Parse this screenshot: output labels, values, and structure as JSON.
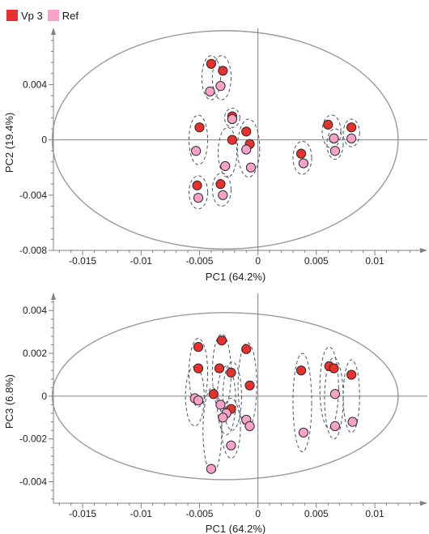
{
  "legend": [
    {
      "name": "Vp 3",
      "color": "#e8302c"
    },
    {
      "name": "Ref",
      "color": "#f7a2c6"
    }
  ],
  "chart_data": [
    {
      "type": "scatter",
      "xlabel": "PC1 (64.2%)",
      "ylabel": "PC2 (19.4%)",
      "xlim": [
        -0.0175,
        0.0145
      ],
      "ylim": [
        -0.008,
        0.0076
      ],
      "xticks": [
        -0.015,
        -0.01,
        -0.005,
        0,
        0.005,
        0.01
      ],
      "xtick_labels": [
        "-0.015",
        "-0.01",
        "-0.005",
        "0",
        "0.005",
        "0.01"
      ],
      "yticks": [
        -0.008,
        -0.004,
        0,
        0.004
      ],
      "ytick_labels": [
        "-0.008",
        "-0.004",
        "0",
        "0.004"
      ],
      "ellipse": {
        "cx": -0.0028,
        "cy": 0.0,
        "rx": 0.0148,
        "ry": 0.0079
      },
      "series": [
        {
          "name": "Vp 3",
          "color": "#e8302c",
          "points": [
            [
              -0.004,
              0.0055
            ],
            [
              -0.003,
              0.005
            ],
            [
              -0.0022,
              0.0017
            ],
            [
              -0.005,
              0.0009
            ],
            [
              -0.0022,
              0.0
            ],
            [
              -0.001,
              0.0006
            ],
            [
              -0.0007,
              -0.0003
            ],
            [
              -0.0052,
              -0.0033
            ],
            [
              -0.0032,
              -0.0032
            ],
            [
              0.0037,
              -0.001
            ],
            [
              0.006,
              0.0011
            ],
            [
              0.0065,
              0.0001
            ],
            [
              0.008,
              0.0009
            ]
          ]
        },
        {
          "name": "Ref",
          "color": "#f7a2c6",
          "points": [
            [
              -0.0041,
              0.0035
            ],
            [
              -0.0032,
              0.0039
            ],
            [
              -0.0022,
              0.0015
            ],
            [
              -0.0053,
              -0.0008
            ],
            [
              -0.0028,
              -0.0019
            ],
            [
              -0.001,
              -0.0007
            ],
            [
              -0.0006,
              -0.002
            ],
            [
              -0.0051,
              -0.0042
            ],
            [
              -0.003,
              -0.004
            ],
            [
              0.0039,
              -0.0017
            ],
            [
              0.0065,
              0.0001
            ],
            [
              0.0066,
              -0.0008
            ],
            [
              0.008,
              0.0001
            ]
          ]
        }
      ],
      "clusters": [
        {
          "cx": -0.004,
          "cy": 0.0045,
          "rx": 0.0008,
          "ry": 0.0016
        },
        {
          "cx": -0.0031,
          "cy": 0.0045,
          "rx": 0.0008,
          "ry": 0.0016
        },
        {
          "cx": -0.0022,
          "cy": 0.0016,
          "rx": 0.00065,
          "ry": 0.0007
        },
        {
          "cx": -0.0051,
          "cy": 0.0,
          "rx": 0.0008,
          "ry": 0.0018
        },
        {
          "cx": -0.0026,
          "cy": -0.0009,
          "rx": 0.0008,
          "ry": 0.0018
        },
        {
          "cx": -0.0008,
          "cy": -0.0006,
          "rx": 0.00095,
          "ry": 0.0021
        },
        {
          "cx": -0.0051,
          "cy": -0.0038,
          "rx": 0.0008,
          "ry": 0.0012
        },
        {
          "cx": -0.0031,
          "cy": -0.0036,
          "rx": 0.0008,
          "ry": 0.0012
        },
        {
          "cx": 0.0038,
          "cy": -0.0013,
          "rx": 0.0008,
          "ry": 0.0012
        },
        {
          "cx": 0.0063,
          "cy": 0.0006,
          "rx": 0.0008,
          "ry": 0.0012
        },
        {
          "cx": 0.0066,
          "cy": -0.0003,
          "rx": 0.0007,
          "ry": 0.0011
        },
        {
          "cx": 0.008,
          "cy": 0.0005,
          "rx": 0.0007,
          "ry": 0.001
        }
      ]
    },
    {
      "type": "scatter",
      "xlabel": "PC1 (64.2%)",
      "ylabel": "PC3 (6.8%)",
      "xlim": [
        -0.0175,
        0.0145
      ],
      "ylim": [
        -0.005,
        0.0045
      ],
      "xticks": [
        -0.015,
        -0.01,
        -0.005,
        0,
        0.005,
        0.01
      ],
      "xtick_labels": [
        "-0.015",
        "-0.01",
        "-0.005",
        "0",
        "0.005",
        "0.01"
      ],
      "yticks": [
        -0.004,
        -0.002,
        0,
        0.002,
        0.004
      ],
      "ytick_labels": [
        "-0.004",
        "-0.002",
        "0",
        "0.002",
        "0.004"
      ],
      "ellipse": {
        "cx": -0.0028,
        "cy": 0.0,
        "rx": 0.0148,
        "ry": 0.0039
      },
      "series": [
        {
          "name": "Vp 3",
          "color": "#e8302c",
          "points": [
            [
              -0.0051,
              0.0023
            ],
            [
              -0.0031,
              0.0026
            ],
            [
              -0.001,
              0.0022
            ],
            [
              -0.0051,
              0.0013
            ],
            [
              -0.0033,
              0.0013
            ],
            [
              -0.0023,
              0.0011
            ],
            [
              -0.0007,
              0.0005
            ],
            [
              -0.0038,
              0.0001
            ],
            [
              -0.0023,
              -0.0006
            ],
            [
              0.0037,
              0.0012
            ],
            [
              0.0061,
              0.0014
            ],
            [
              0.0065,
              0.0013
            ],
            [
              0.008,
              0.001
            ]
          ]
        },
        {
          "name": "Ref",
          "color": "#f7a2c6",
          "points": [
            [
              -0.0054,
              -0.0001
            ],
            [
              -0.0051,
              -0.0002
            ],
            [
              -0.0032,
              -0.0004
            ],
            [
              -0.0027,
              -0.0008
            ],
            [
              -0.003,
              -0.001
            ],
            [
              -0.001,
              -0.0011
            ],
            [
              -0.0007,
              -0.0014
            ],
            [
              -0.0023,
              -0.0023
            ],
            [
              -0.004,
              -0.0034
            ],
            [
              0.0039,
              -0.0017
            ],
            [
              0.0066,
              0.0001
            ],
            [
              0.0066,
              -0.0014
            ],
            [
              0.0081,
              -0.0012
            ]
          ]
        }
      ],
      "clusters": [
        {
          "cx": -0.0051,
          "cy": 0.0011,
          "rx": 0.0008,
          "ry": 0.0016
        },
        {
          "cx": -0.0054,
          "cy": 0.0,
          "rx": 0.0008,
          "ry": 0.0014
        },
        {
          "cx": -0.0031,
          "cy": 0.0011,
          "rx": 0.0008,
          "ry": 0.0018
        },
        {
          "cx": -0.0027,
          "cy": -0.0002,
          "rx": 0.0008,
          "ry": 0.0016
        },
        {
          "cx": -0.0022,
          "cy": 0.0,
          "rx": 0.0008,
          "ry": 0.0016
        },
        {
          "cx": -0.0009,
          "cy": 0.0005,
          "rx": 0.0008,
          "ry": 0.002
        },
        {
          "cx": -0.0039,
          "cy": -0.0016,
          "rx": 0.0008,
          "ry": 0.002
        },
        {
          "cx": -0.0023,
          "cy": -0.0015,
          "rx": 0.0008,
          "ry": 0.0014
        },
        {
          "cx": 0.0038,
          "cy": -0.0003,
          "rx": 0.0008,
          "ry": 0.0023
        },
        {
          "cx": 0.0061,
          "cy": 0.0004,
          "rx": 0.0008,
          "ry": 0.0019
        },
        {
          "cx": 0.0065,
          "cy": -0.0001,
          "rx": 0.0008,
          "ry": 0.0019
        },
        {
          "cx": 0.008,
          "cy": 0.0,
          "rx": 0.0007,
          "ry": 0.0017
        }
      ]
    }
  ]
}
